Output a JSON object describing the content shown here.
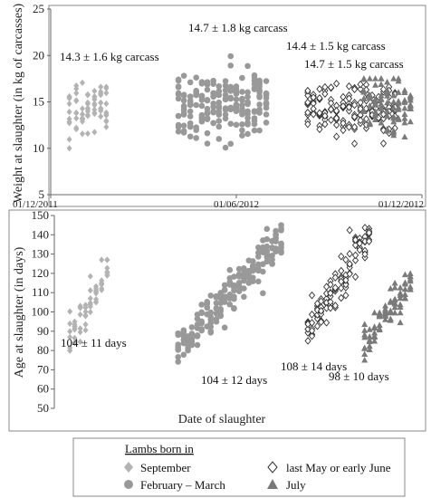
{
  "chart_data": [
    {
      "type": "scatter",
      "ylabel": "Weight at slaughter (in kg of carcasses)",
      "ylim": [
        5,
        25
      ],
      "y_ticks": [
        "5",
        "10",
        "15",
        "20",
        "25"
      ],
      "x_dates": [
        "01/12/2011",
        "01/06/2012",
        "01/12/2012"
      ],
      "grid": false,
      "annotations": [
        "14.3 ± 1.6 kg carcass",
        "14.7 ± 1.8 kg carcass",
        "14.4 ± 1.5 kg carcass",
        "14.7 ± 1.5 kg carcass"
      ],
      "series": [
        {
          "name": "September",
          "marker": "diamond",
          "color": "#b3b3b3",
          "x_range": [
            "2011-12-20",
            "2012-01-25"
          ],
          "y_range": [
            10,
            18
          ],
          "y_mean": 14.3,
          "y_sd": 1.6
        },
        {
          "name": "February – March",
          "marker": "circle",
          "color": "#999999",
          "x_range": [
            "2012-04-05",
            "2012-06-30"
          ],
          "y_range": [
            10,
            20.7
          ],
          "y_mean": 14.7,
          "y_sd": 1.8
        },
        {
          "name": "last May or early June",
          "marker": "open-diamond",
          "color": "#333333",
          "x_range": [
            "2012-08-10",
            "2012-11-05"
          ],
          "y_range": [
            10.5,
            19
          ],
          "y_mean": 14.4,
          "y_sd": 1.5
        },
        {
          "name": "July",
          "marker": "triangle",
          "color": "#7a7a7a",
          "x_range": [
            "2012-10-05",
            "2012-11-20"
          ],
          "y_range": [
            11,
            17.5
          ],
          "y_mean": 14.7,
          "y_sd": 1.5
        }
      ]
    },
    {
      "type": "scatter",
      "xlabel": "Date of slaughter",
      "ylabel": "Age at slaughter (in days)",
      "ylim": [
        50,
        150
      ],
      "y_ticks": [
        "50",
        "60",
        "70",
        "80",
        "90",
        "100",
        "110",
        "120",
        "130",
        "140",
        "150"
      ],
      "grid": false,
      "annotations": [
        "104 ± 11 days",
        "104 ± 12 days",
        "108 ± 14 days",
        "98 ± 10 days"
      ],
      "series": [
        {
          "name": "September",
          "x_range": [
            "2011-12-20",
            "2012-01-25"
          ],
          "y_range": [
            80,
            127
          ],
          "y_mean": 104,
          "y_sd": 11
        },
        {
          "name": "February – March",
          "x_range": [
            "2012-04-05",
            "2012-07-15"
          ],
          "y_range": [
            74,
            146
          ],
          "y_mean": 104,
          "y_sd": 12
        },
        {
          "name": "last May or early June",
          "x_range": [
            "2012-08-10",
            "2012-10-10"
          ],
          "y_range": [
            83,
            148
          ],
          "y_mean": 108,
          "y_sd": 14
        },
        {
          "name": "July",
          "x_range": [
            "2012-10-05",
            "2012-11-20"
          ],
          "y_range": [
            75,
            124
          ],
          "y_mean": 98,
          "y_sd": 10
        }
      ]
    }
  ],
  "legend": {
    "title": "Lambs born in",
    "items": [
      {
        "label": "September",
        "marker": "diamond",
        "color": "#b3b3b3"
      },
      {
        "label": "February – March",
        "marker": "circle",
        "color": "#999999"
      },
      {
        "label": "last May or early June",
        "marker": "open-diamond",
        "color": "#333333"
      },
      {
        "label": "July",
        "marker": "triangle",
        "color": "#7a7a7a"
      }
    ]
  }
}
